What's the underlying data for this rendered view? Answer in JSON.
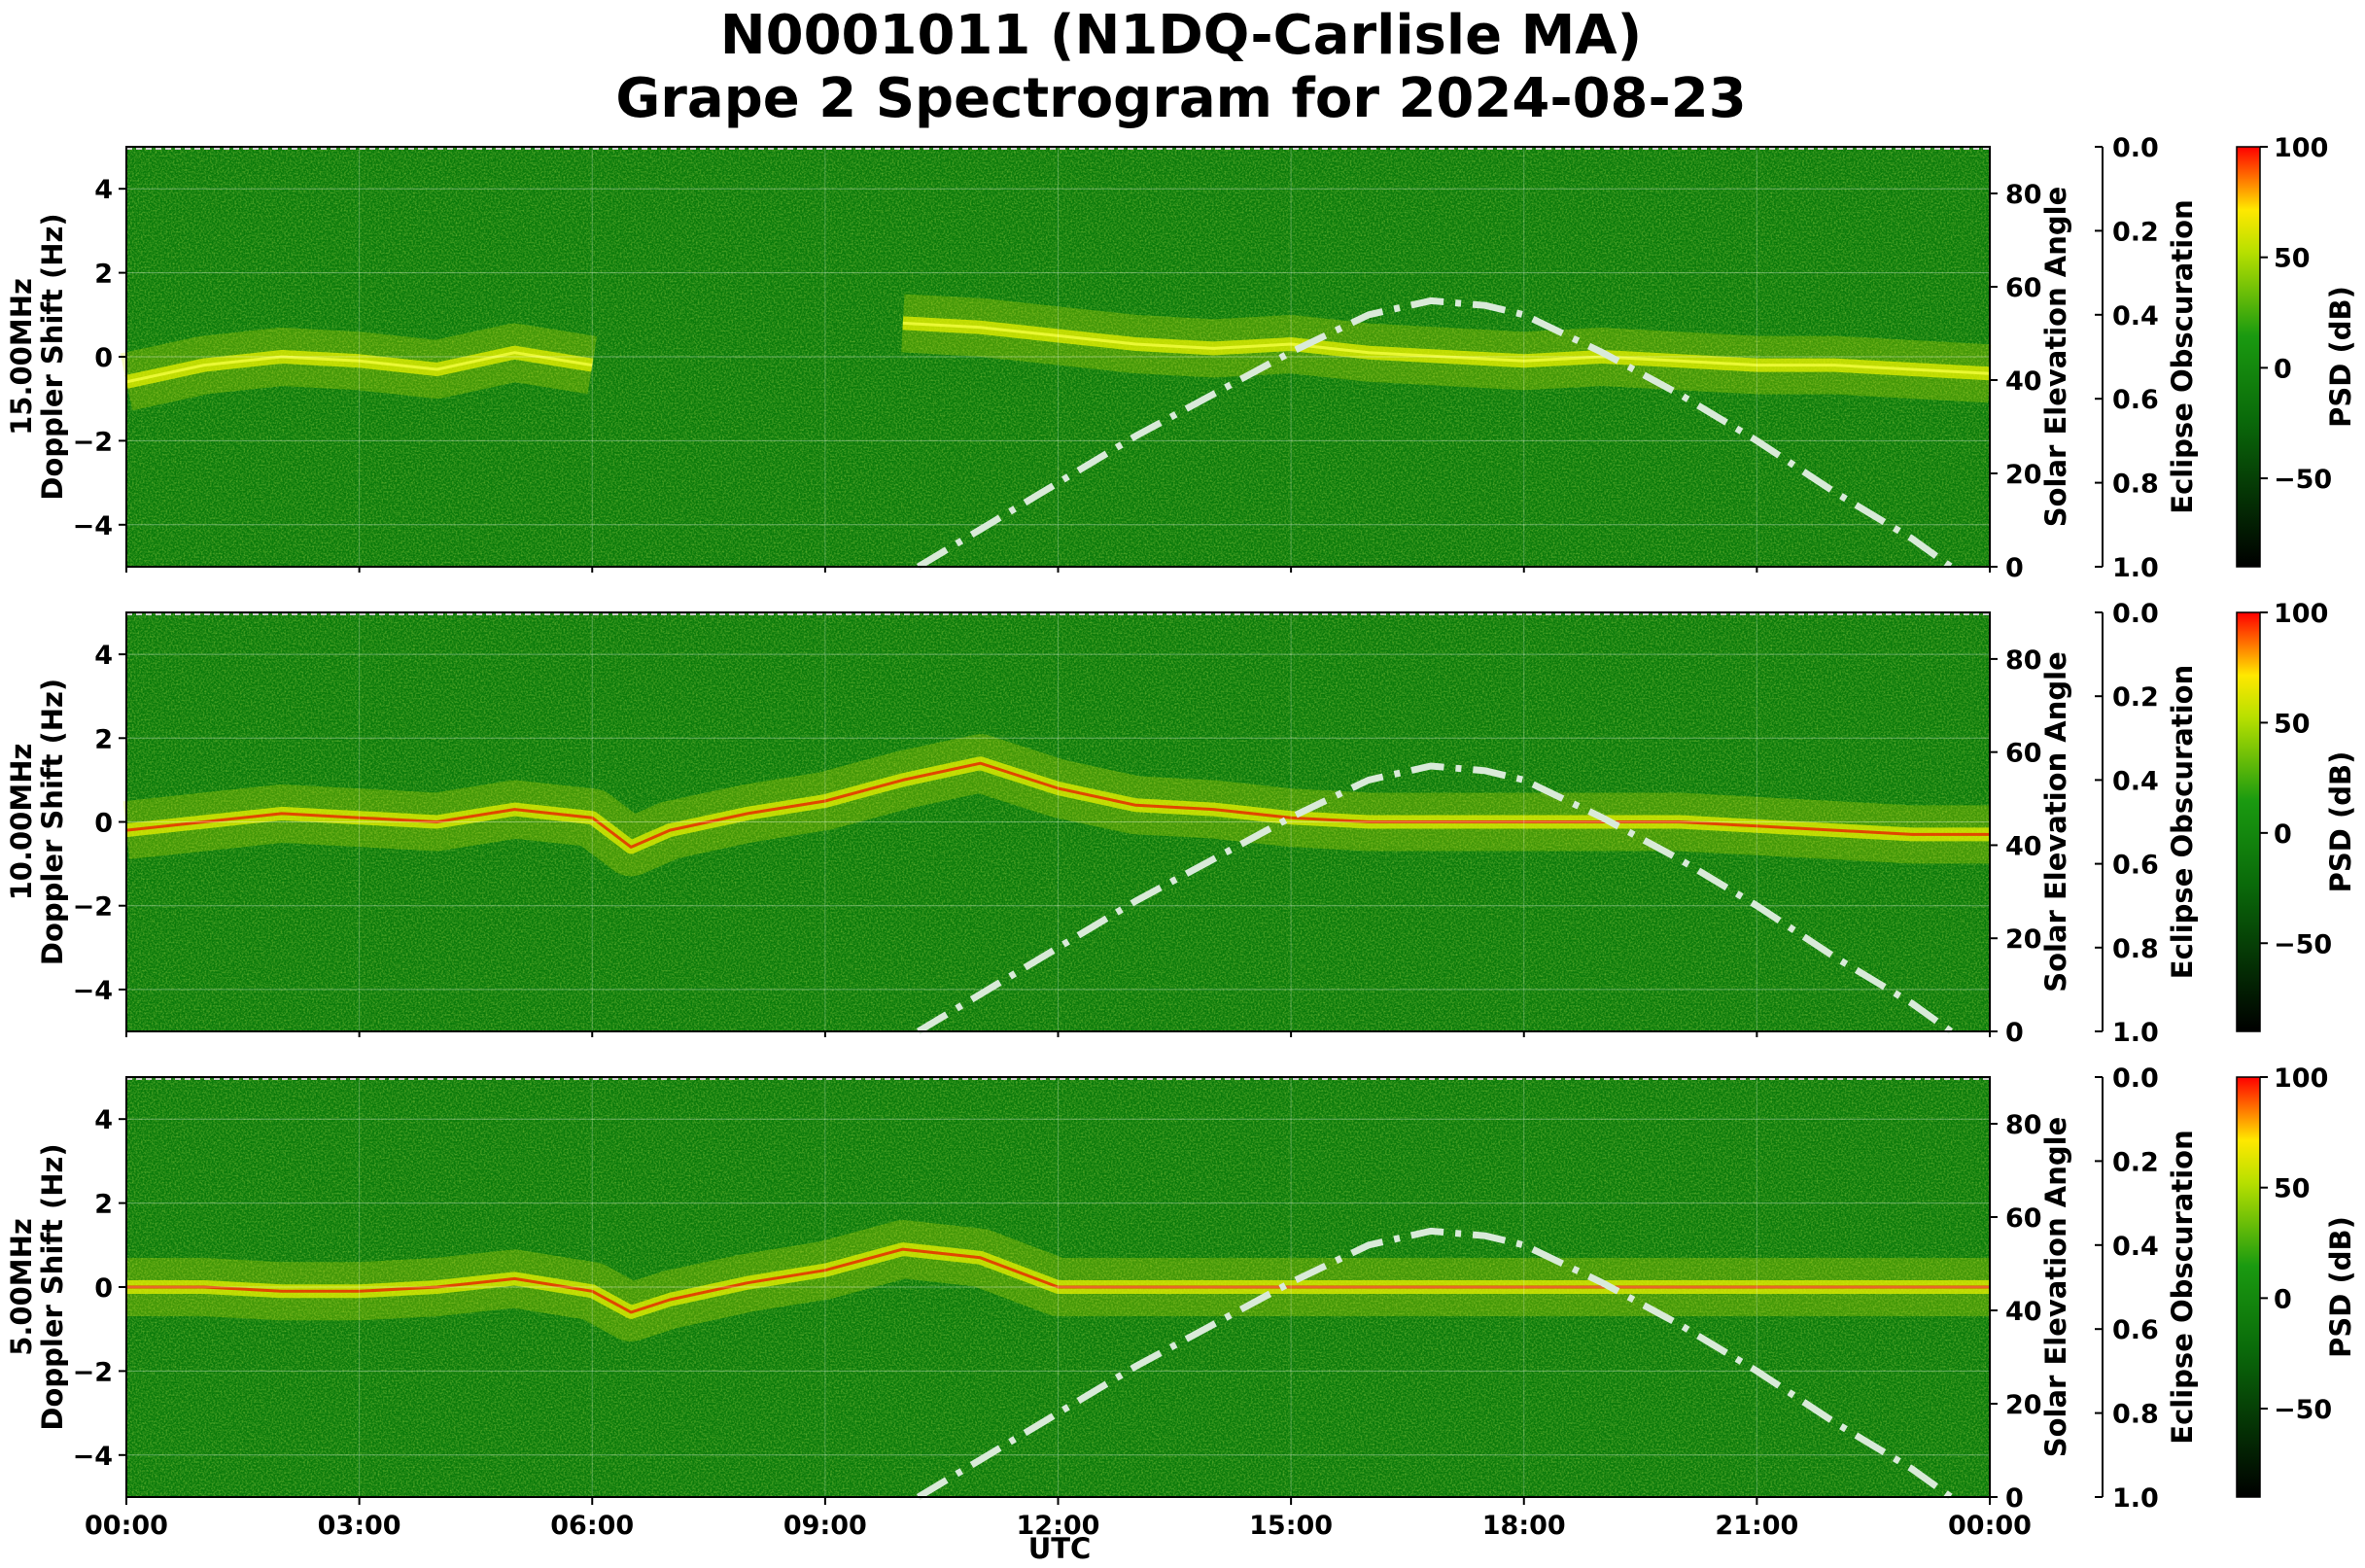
{
  "title_line1": "N0001011 (N1DQ-Carlisle MA)",
  "title_line2": "Grape 2 Spectrogram for 2024-08-23",
  "xlabel": "UTC",
  "x_ticks": [
    "00:00",
    "03:00",
    "06:00",
    "09:00",
    "12:00",
    "15:00",
    "18:00",
    "21:00",
    "00:00"
  ],
  "doppler_label": "Doppler Shift (Hz)",
  "elevation_label": "Solar Elevation Angle",
  "eclipse_label": "Eclipse Obscuration",
  "psd_label": "PSD (dB)",
  "colors": {
    "background_green": "#0a7a0a",
    "trace_yellow": "#e6f000",
    "hot_red": "#e82000",
    "elevation_curve": "#d9ead9"
  },
  "chart_data": [
    {
      "type": "heatmap",
      "panel_label": "15.00MHz",
      "xlabel": "",
      "ylabel": "15.00MHz Doppler Shift (Hz)",
      "xlim": [
        "00:00",
        "24:00"
      ],
      "ylim": [
        -5,
        5
      ],
      "y_ticks": [
        "4",
        "2",
        "0",
        "−2",
        "−4"
      ],
      "y_tick_values": [
        4,
        2,
        0,
        -2,
        -4
      ],
      "elevation_ylim": [
        0,
        90
      ],
      "elevation_ticks": [
        "80",
        "60",
        "40",
        "20",
        "0"
      ],
      "elevation_tick_values": [
        80,
        60,
        40,
        20,
        0
      ],
      "eclipse_ticks": [
        "0.0",
        "0.2",
        "0.4",
        "0.6",
        "0.8",
        "1.0"
      ],
      "colorbar": {
        "label": "PSD (dB)",
        "range": [
          -90,
          100
        ],
        "ticks": [
          "100",
          "50",
          "0",
          "−50"
        ],
        "tick_values": [
          100,
          50,
          0,
          -50
        ]
      },
      "doppler_trace": {
        "x_hours": [
          0,
          1,
          2,
          3,
          4,
          5,
          6,
          6.5,
          9,
          10,
          11,
          12,
          13,
          14,
          15,
          16,
          17,
          18,
          19,
          20,
          21,
          22,
          23,
          24
        ],
        "y_hz": [
          -0.6,
          -0.2,
          0,
          -0.1,
          -0.3,
          0.1,
          -0.2,
          null,
          null,
          0.8,
          0.7,
          0.5,
          0.3,
          0.2,
          0.3,
          0.1,
          0,
          -0.1,
          0,
          -0.1,
          -0.2,
          -0.2,
          -0.3,
          -0.4
        ]
      },
      "solar_elevation": {
        "x_hours": [
          10.2,
          11,
          12,
          13,
          14,
          15,
          16,
          16.8,
          17.5,
          18,
          19,
          20,
          21,
          22,
          23,
          23.5
        ],
        "deg": [
          0,
          8,
          18,
          28,
          37,
          46,
          54,
          57,
          56,
          54,
          46,
          37,
          27,
          16,
          6,
          0
        ]
      }
    },
    {
      "type": "heatmap",
      "panel_label": "10.00MHz",
      "xlabel": "",
      "ylabel": "10.00MHz Doppler Shift (Hz)",
      "xlim": [
        "00:00",
        "24:00"
      ],
      "ylim": [
        -5,
        5
      ],
      "y_ticks": [
        "4",
        "2",
        "0",
        "−2",
        "−4"
      ],
      "y_tick_values": [
        4,
        2,
        0,
        -2,
        -4
      ],
      "elevation_ylim": [
        0,
        90
      ],
      "elevation_ticks": [
        "80",
        "60",
        "40",
        "20",
        "0"
      ],
      "elevation_tick_values": [
        80,
        60,
        40,
        20,
        0
      ],
      "eclipse_ticks": [
        "0.0",
        "0.2",
        "0.4",
        "0.6",
        "0.8",
        "1.0"
      ],
      "colorbar": {
        "label": "PSD (dB)",
        "range": [
          -90,
          100
        ],
        "ticks": [
          "100",
          "50",
          "0",
          "−50"
        ],
        "tick_values": [
          100,
          50,
          0,
          -50
        ]
      },
      "doppler_trace": {
        "x_hours": [
          0,
          1,
          2,
          3,
          4,
          5,
          6,
          6.5,
          7,
          8,
          9,
          10,
          11,
          12,
          13,
          14,
          15,
          16,
          17,
          18,
          19,
          20,
          21,
          22,
          23,
          24
        ],
        "y_hz": [
          -0.2,
          0,
          0.2,
          0.1,
          0,
          0.3,
          0.1,
          -0.6,
          -0.2,
          0.2,
          0.5,
          1.0,
          1.4,
          0.8,
          0.4,
          0.3,
          0.1,
          0,
          0,
          0,
          0,
          0,
          -0.1,
          -0.2,
          -0.3,
          -0.3
        ]
      },
      "solar_elevation": {
        "x_hours": [
          10.2,
          11,
          12,
          13,
          14,
          15,
          16,
          16.8,
          17.5,
          18,
          19,
          20,
          21,
          22,
          23,
          23.5
        ],
        "deg": [
          0,
          8,
          18,
          28,
          37,
          46,
          54,
          57,
          56,
          54,
          46,
          37,
          27,
          16,
          6,
          0
        ]
      }
    },
    {
      "type": "heatmap",
      "panel_label": "5.00MHz",
      "xlabel": "UTC",
      "ylabel": "5.00MHz Doppler Shift (Hz)",
      "xlim": [
        "00:00",
        "24:00"
      ],
      "ylim": [
        -5,
        5
      ],
      "y_ticks": [
        "4",
        "2",
        "0",
        "−2",
        "−4"
      ],
      "y_tick_values": [
        4,
        2,
        0,
        -2,
        -4
      ],
      "elevation_ylim": [
        0,
        90
      ],
      "elevation_ticks": [
        "80",
        "60",
        "40",
        "20",
        "0"
      ],
      "elevation_tick_values": [
        80,
        60,
        40,
        20,
        0
      ],
      "eclipse_ticks": [
        "0.0",
        "0.2",
        "0.4",
        "0.6",
        "0.8",
        "1.0"
      ],
      "colorbar": {
        "label": "PSD (dB)",
        "range": [
          -90,
          100
        ],
        "ticks": [
          "100",
          "50",
          "0",
          "−50"
        ],
        "tick_values": [
          100,
          50,
          0,
          -50
        ]
      },
      "doppler_trace": {
        "x_hours": [
          0,
          1,
          2,
          3,
          4,
          5,
          6,
          6.5,
          7,
          8,
          9,
          10,
          11,
          12,
          13,
          14,
          15,
          16,
          17,
          18,
          19,
          20,
          21,
          22,
          23,
          24
        ],
        "y_hz": [
          0,
          0,
          -0.1,
          -0.1,
          0,
          0.2,
          -0.1,
          -0.6,
          -0.3,
          0.1,
          0.4,
          0.9,
          0.7,
          0,
          0,
          0,
          0,
          0,
          0,
          0,
          0,
          0,
          0,
          0,
          0,
          0
        ]
      },
      "solar_elevation": {
        "x_hours": [
          10.2,
          11,
          12,
          13,
          14,
          15,
          16,
          16.8,
          17.5,
          18,
          19,
          20,
          21,
          22,
          23,
          23.5
        ],
        "deg": [
          0,
          8,
          18,
          28,
          37,
          46,
          54,
          57,
          56,
          54,
          46,
          37,
          27,
          16,
          6,
          0
        ]
      }
    }
  ]
}
